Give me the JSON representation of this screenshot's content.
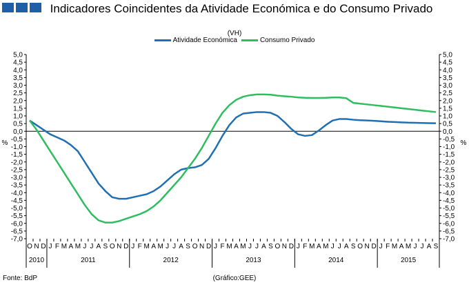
{
  "header": {
    "title": "Indicadores Coincidentes da Atividade Económica e do Consumo Privado",
    "subtitle": "(VH)"
  },
  "footer": {
    "source": "Fonte: BdP",
    "credit": "(Gráfico:GEE)"
  },
  "colors": {
    "logo": "#1f5fa8",
    "grid": "#bfbfbf",
    "axis": "#000000"
  },
  "chart_data": {
    "type": "line",
    "ylabel_left": "%",
    "ylabel_right": "%",
    "ylim": [
      -7.0,
      5.0
    ],
    "ytick_labels": [
      "5,0",
      "4,5",
      "4,0",
      "3,5",
      "3,0",
      "2,5",
      "2,0",
      "1,5",
      "1,0",
      "0,5",
      "0,0",
      "-0,5",
      "-1,0",
      "-1,5",
      "-2,0",
      "-2,5",
      "-3,0",
      "-3,5",
      "-4,0",
      "-4,5",
      "-5,0",
      "-5,5",
      "-6,0",
      "-6,5",
      "-7,0"
    ],
    "ytick_labels_right": [
      "5,0",
      "4,5",
      "4,0",
      "3,5",
      "3,0",
      "2,5",
      "2,0",
      "1,5",
      "1,0",
      "0,5",
      "0,0",
      "-0,5",
      "-1,0",
      "-1,5",
      "-2,0",
      "-2,5",
      "-3,0",
      "-3,5",
      "-4,0",
      "-4,5",
      "-5,0",
      "-5,5",
      "-6,0",
      "-6,5",
      "-7,0"
    ],
    "ytick_values": [
      5.0,
      4.5,
      4.0,
      3.5,
      3.0,
      2.5,
      2.0,
      1.5,
      1.0,
      0.5,
      0.0,
      -0.5,
      -1.0,
      -1.5,
      -2.0,
      -2.5,
      -3.0,
      -3.5,
      -4.0,
      -4.5,
      -5.0,
      -5.5,
      -6.0,
      -6.5,
      -7.0
    ],
    "x": [
      "O",
      "N",
      "D",
      "J",
      "F",
      "M",
      "A",
      "M",
      "J",
      "J",
      "A",
      "S",
      "O",
      "N",
      "D",
      "J",
      "F",
      "M",
      "A",
      "M",
      "J",
      "J",
      "A",
      "S",
      "O",
      "N",
      "D",
      "J",
      "F",
      "M",
      "A",
      "M",
      "J",
      "J",
      "A",
      "S",
      "O",
      "N",
      "D",
      "J",
      "F",
      "M",
      "A",
      "M",
      "J",
      "J",
      "A",
      "S",
      "O",
      "N",
      "D",
      "J",
      "F",
      "M",
      "A",
      "M",
      "J",
      "J",
      "A",
      "S"
    ],
    "years": [
      {
        "label": "2010",
        "start": 0,
        "count": 3
      },
      {
        "label": "2011",
        "start": 3,
        "count": 12
      },
      {
        "label": "2012",
        "start": 15,
        "count": 12
      },
      {
        "label": "2013",
        "start": 27,
        "count": 12
      },
      {
        "label": "2014",
        "start": 39,
        "count": 12
      },
      {
        "label": "2015",
        "start": 51,
        "count": 9
      }
    ],
    "legend_position": "top-center",
    "grid": false,
    "series": [
      {
        "name": "Atividade Económica",
        "color": "#1f6fb4",
        "values": [
          0.7,
          0.4,
          0.1,
          -0.2,
          -0.4,
          -0.6,
          -0.9,
          -1.3,
          -2.0,
          -2.7,
          -3.4,
          -3.9,
          -4.3,
          -4.4,
          -4.4,
          -4.3,
          -4.2,
          -4.1,
          -3.9,
          -3.6,
          -3.2,
          -2.8,
          -2.5,
          -2.4,
          -2.35,
          -2.2,
          -1.8,
          -1.1,
          -0.3,
          0.4,
          0.9,
          1.15,
          1.2,
          1.25,
          1.25,
          1.2,
          1.0,
          0.6,
          0.15,
          -0.2,
          -0.3,
          -0.25,
          0.05,
          0.4,
          0.7,
          0.8,
          0.8,
          0.75,
          0.72,
          0.7,
          0.68,
          0.65,
          0.62,
          0.6,
          0.58,
          0.56,
          0.55,
          0.54,
          0.53,
          0.52
        ]
      },
      {
        "name": "Consumo Privado",
        "color": "#2ebd5f",
        "values": [
          0.7,
          0.1,
          -0.6,
          -1.3,
          -2.0,
          -2.7,
          -3.4,
          -4.1,
          -4.8,
          -5.4,
          -5.8,
          -5.95,
          -5.95,
          -5.85,
          -5.7,
          -5.55,
          -5.4,
          -5.2,
          -4.9,
          -4.5,
          -4.0,
          -3.5,
          -3.0,
          -2.4,
          -1.8,
          -1.1,
          -0.3,
          0.5,
          1.2,
          1.7,
          2.05,
          2.25,
          2.35,
          2.4,
          2.4,
          2.38,
          2.32,
          2.28,
          2.25,
          2.2,
          2.18,
          2.17,
          2.17,
          2.18,
          2.2,
          2.2,
          2.15,
          1.85,
          1.8,
          1.75,
          1.7,
          1.65,
          1.6,
          1.55,
          1.5,
          1.45,
          1.4,
          1.35,
          1.3,
          1.25
        ]
      }
    ]
  }
}
